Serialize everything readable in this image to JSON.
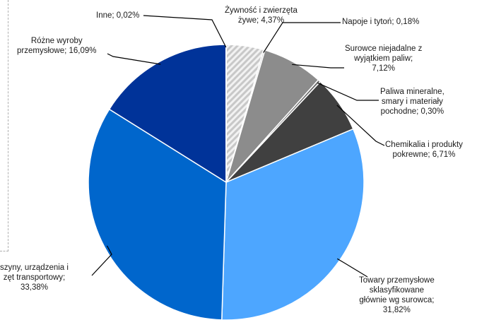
{
  "chart_data": {
    "type": "pie",
    "title": "",
    "legend": "none",
    "slices": [
      {
        "label": "Żywność i zwierzęta\nżywe; 4,37%",
        "value": 4.37,
        "color": "#d9d9d9",
        "pattern": "diagonal-hatch"
      },
      {
        "label": "Napoje i tytoń; 0,18%",
        "value": 0.18,
        "color": "#bfbfbf"
      },
      {
        "label": "Surowce niejadalne z\nwyjątkiem paliw;\n7,12%",
        "value": 7.12,
        "color": "#8c8c8c"
      },
      {
        "label": "Paliwa mineralne,\nsmary i materiały\npochodne; 0,30%",
        "value": 0.3,
        "color": "#6b6b6b"
      },
      {
        "label": "Chemikalia i produkty\npokrewne; 6,71%",
        "value": 6.71,
        "color": "#404040"
      },
      {
        "label": "Towary przemysłowe\nsklasyfikowane\ngłównie wg surowca;\n31,82%",
        "value": 31.82,
        "color": "#4da6ff"
      },
      {
        "label": "szyny, urządzenia i\nzęt transportowy;\n33,38%",
        "value": 33.38,
        "color": "#0066cc"
      },
      {
        "label": "Różne wyroby\nprzemysłowe; 16,09%",
        "value": 16.09,
        "color": "#003399"
      },
      {
        "label": "Inne; 0,02%",
        "value": 0.02,
        "color": "#1a1a1a"
      }
    ]
  }
}
